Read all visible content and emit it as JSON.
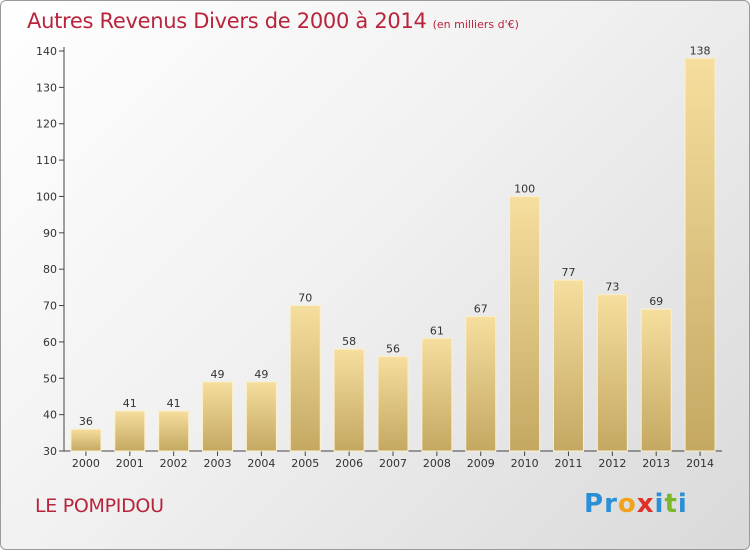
{
  "header": {
    "title": "Autres Revenus Divers de 2000 à 2014",
    "unit": "(en milliers d'€)"
  },
  "footer": {
    "commune": "LE POMPIDOU",
    "logo_letters": [
      {
        "ch": "P",
        "color": "#2a8fd6"
      },
      {
        "ch": "r",
        "color": "#2a8fd6"
      },
      {
        "ch": "o",
        "color": "#f0a21a"
      },
      {
        "ch": "x",
        "color": "#e0302a"
      },
      {
        "ch": "i",
        "color": "#2a8fd6"
      },
      {
        "ch": "t",
        "color": "#7ab82a"
      },
      {
        "ch": "i",
        "color": "#2a8fd6"
      }
    ]
  },
  "colors": {
    "title": "#b8243c",
    "bar_light": "#f5dc9a",
    "bar_dark": "#c6ab66",
    "axis": "#444444"
  },
  "chart_data": {
    "type": "bar",
    "title": "Autres Revenus Divers de 2000 à 2014",
    "subtitle": "(en milliers d'€)",
    "xlabel": "",
    "ylabel": "",
    "categories": [
      "2000",
      "2001",
      "2002",
      "2003",
      "2004",
      "2005",
      "2006",
      "2007",
      "2008",
      "2009",
      "2010",
      "2011",
      "2012",
      "2013",
      "2014"
    ],
    "values": [
      36,
      41,
      41,
      49,
      49,
      70,
      58,
      56,
      61,
      67,
      100,
      77,
      73,
      69,
      138
    ],
    "ylim": [
      30,
      140
    ],
    "yticks": [
      30,
      40,
      50,
      60,
      70,
      80,
      90,
      100,
      110,
      120,
      130,
      140
    ],
    "grid": false,
    "data_labels": true
  }
}
